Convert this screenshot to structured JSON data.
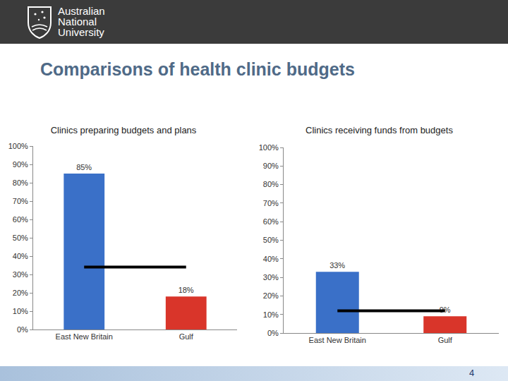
{
  "header": {
    "institution": [
      "Australian",
      "National",
      "University"
    ]
  },
  "title": "Comparisons of health clinic budgets",
  "page_number": "4",
  "chart_data": [
    {
      "type": "bar",
      "title": "Clinics preparing budgets and plans",
      "categories": [
        "East New Britain",
        "Gulf"
      ],
      "series": [
        {
          "type": "bar",
          "colors": [
            "#3a70c8",
            "#d9352a"
          ],
          "values": [
            85,
            18
          ],
          "value_labels": [
            "85%",
            "18%"
          ]
        },
        {
          "type": "line",
          "color": "#000000",
          "values": [
            34,
            34
          ]
        }
      ],
      "data_labels": true,
      "grid": false,
      "ylim": [
        0,
        100
      ],
      "yticks": [
        {
          "value": 0,
          "label": "0%"
        },
        {
          "value": 10,
          "label": "10%"
        },
        {
          "value": 20,
          "label": "20%"
        },
        {
          "value": 30,
          "label": "30%"
        },
        {
          "value": 40,
          "label": "40%"
        },
        {
          "value": 50,
          "label": "50%"
        },
        {
          "value": 60,
          "label": "60%"
        },
        {
          "value": 70,
          "label": "70%"
        },
        {
          "value": 80,
          "label": "80%"
        },
        {
          "value": 90,
          "label": "90%"
        },
        {
          "value": 100,
          "label": "100%"
        }
      ]
    },
    {
      "type": "bar",
      "title": "Clinics receiving funds from budgets",
      "categories": [
        "East New Britain",
        "Gulf"
      ],
      "series": [
        {
          "type": "bar",
          "colors": [
            "#3a70c8",
            "#d9352a"
          ],
          "values": [
            33,
            9
          ],
          "value_labels": [
            "33%",
            "9%"
          ]
        },
        {
          "type": "line",
          "color": "#000000",
          "values": [
            12,
            12
          ]
        }
      ],
      "data_labels": true,
      "grid": false,
      "ylim": [
        0,
        100
      ],
      "yticks": [
        {
          "value": 0,
          "label": "0%"
        },
        {
          "value": 10,
          "label": "10%"
        },
        {
          "value": 20,
          "label": "20%"
        },
        {
          "value": 30,
          "label": "30%"
        },
        {
          "value": 40,
          "label": "40%"
        },
        {
          "value": 50,
          "label": "50%"
        },
        {
          "value": 60,
          "label": "60%"
        },
        {
          "value": 70,
          "label": "70%"
        },
        {
          "value": 80,
          "label": "80%"
        },
        {
          "value": 90,
          "label": "90%"
        },
        {
          "value": 100,
          "label": "100%"
        }
      ]
    }
  ]
}
